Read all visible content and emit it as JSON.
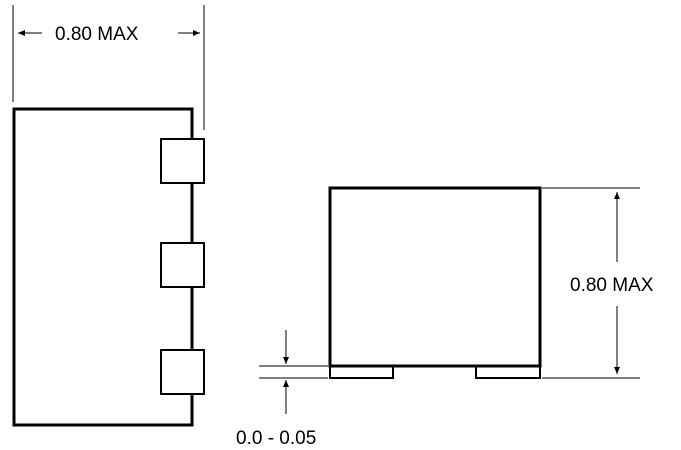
{
  "drawing": {
    "side_view": {
      "width_dimension": {
        "label": "0.80 MAX"
      }
    },
    "front_view": {
      "height_dimension": {
        "label": "0.80 MAX"
      },
      "standoff_dimension": {
        "label": "0.0 - 0.05"
      }
    },
    "colors": {
      "line": "#000000",
      "background": "#ffffff"
    }
  }
}
